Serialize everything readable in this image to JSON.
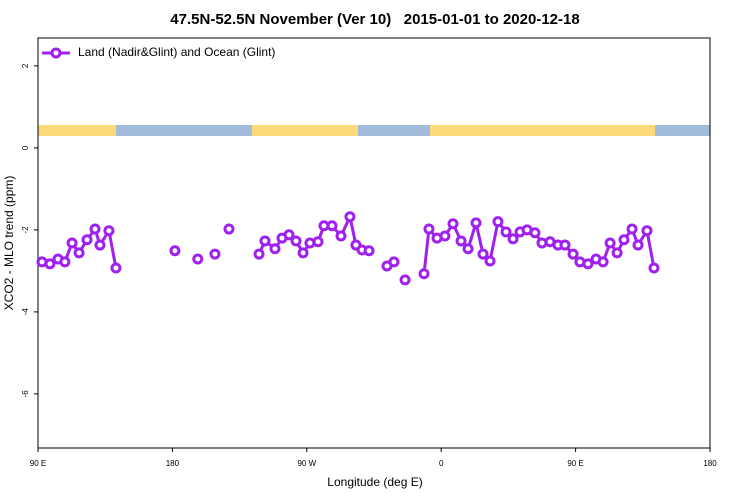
{
  "chart_data": {
    "type": "line",
    "title": "47.5N-52.5N November (Ver 10)   2015-01-01 to 2020-12-18",
    "x_label": "Longitude (deg E)",
    "y_label": "XCO2 - MLO trend (ppm)",
    "xlim": [
      90,
      540
    ],
    "ylim": [
      -7.32,
      2.68
    ],
    "xticks": [
      {
        "value": 90,
        "label": "90 E"
      },
      180,
      {
        "value": 270,
        "label": "90 W"
      },
      {
        "value": 360,
        "label": "0"
      },
      {
        "value": 450,
        "label": "90 E"
      },
      {
        "value": 540,
        "label": "180"
      }
    ],
    "yticks": [
      2,
      0,
      -2,
      -4,
      -6
    ],
    "legend": "top-left",
    "series": [
      {
        "name": "Land (Nadir&Glint) and Ocean (Glint)",
        "color": "#a020f0",
        "x": [
          92.7,
          98,
          103.4,
          108,
          112.8,
          117.5,
          122.8,
          128.2,
          131.5,
          137.5,
          142.2,
          null,
          181.7,
          null,
          197,
          null,
          208.5,
          null,
          217.9,
          null,
          238,
          242,
          248.7,
          253.4,
          258.1,
          262.8,
          267.5,
          272.1,
          277.5,
          281.5,
          286.9,
          292.9,
          298.9,
          302.9,
          307,
          311.7,
          null,
          323.7,
          328.4,
          null,
          335.8,
          null,
          348.5,
          351.8,
          357.2,
          362.5,
          367.9,
          373.3,
          378,
          383.3,
          388,
          392.7,
          398,
          403.4,
          408.1,
          412.8,
          417.5,
          422.8,
          427.5,
          432.9,
          438.2,
          442.9,
          448.3,
          452.9,
          458.3,
          463.7,
          468.4,
          473.1,
          477.8,
          482.4,
          487.8,
          491.8,
          497.8,
          502.5
        ],
        "values": [
          -2.78,
          -2.83,
          -2.71,
          -2.78,
          -2.32,
          -2.56,
          -2.24,
          -1.98,
          -2.37,
          -2.02,
          -2.93,
          null,
          -2.51,
          null,
          -2.71,
          null,
          -2.59,
          null,
          -1.98,
          null,
          -2.59,
          -2.27,
          -2.46,
          -2.2,
          -2.12,
          -2.27,
          -2.56,
          -2.32,
          -2.29,
          -1.9,
          -1.9,
          -2.15,
          -1.68,
          -2.37,
          -2.49,
          -2.51,
          null,
          -2.88,
          -2.78,
          null,
          -3.22,
          null,
          -3.07,
          -1.98,
          -2.2,
          -2.15,
          -1.85,
          -2.27,
          -2.46,
          -1.83,
          -2.59,
          -2.76,
          -1.8,
          -2.05,
          -2.22,
          -2.05,
          -2.0,
          -2.07,
          -2.32,
          -2.29,
          -2.37,
          -2.37,
          -2.59,
          -2.78,
          -2.83,
          -2.71,
          -2.78,
          -2.32,
          -2.56,
          -2.24,
          -1.98,
          -2.37,
          -2.02,
          -2.93
        ]
      }
    ]
  }
}
